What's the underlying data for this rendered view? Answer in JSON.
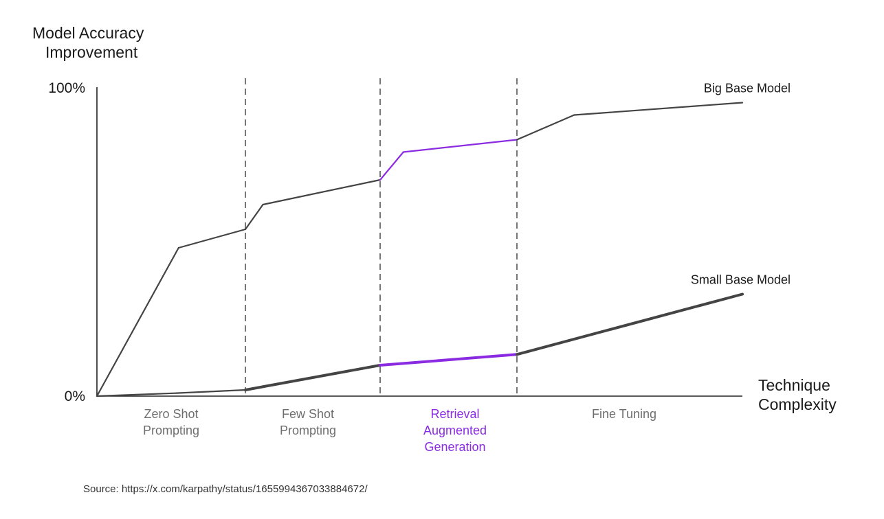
{
  "chart_data": {
    "type": "line",
    "ylabel": [
      "Model Accuracy",
      "Improvement"
    ],
    "xlabel": [
      "Technique",
      "Complexity"
    ],
    "yticks": [
      "100%",
      "0%"
    ],
    "ylim": [
      0,
      100
    ],
    "xlim": [
      0,
      4
    ],
    "categories": [
      {
        "label": [
          "Zero Shot",
          "Prompting"
        ],
        "highlight": false
      },
      {
        "label": [
          "Few Shot",
          "Prompting"
        ],
        "highlight": false
      },
      {
        "label": [
          "Retrieval",
          "Augmented",
          "Generation"
        ],
        "highlight": true
      },
      {
        "label": [
          "Fine Tuning"
        ],
        "highlight": false
      }
    ],
    "highlight_stage": 2,
    "highlight_color": "#8a2be2",
    "line_color": "#444444",
    "series": [
      {
        "name": "Big Base Model",
        "points": [
          [
            0,
            0
          ],
          [
            0.55,
            48
          ],
          [
            1.0,
            54
          ],
          [
            1.13,
            62
          ],
          [
            2.0,
            70
          ],
          [
            2.17,
            79
          ],
          [
            3.0,
            83
          ],
          [
            3.33,
            91
          ],
          [
            4.3,
            95
          ]
        ]
      },
      {
        "name": "Small Base Model",
        "points": [
          [
            0,
            0
          ],
          [
            0.55,
            1
          ],
          [
            1.0,
            2
          ],
          [
            2.0,
            10
          ],
          [
            3.0,
            13.5
          ],
          [
            4.3,
            33
          ]
        ]
      }
    ]
  },
  "source": "Source: https://x.com/karpathy/status/1655994367033884672/"
}
